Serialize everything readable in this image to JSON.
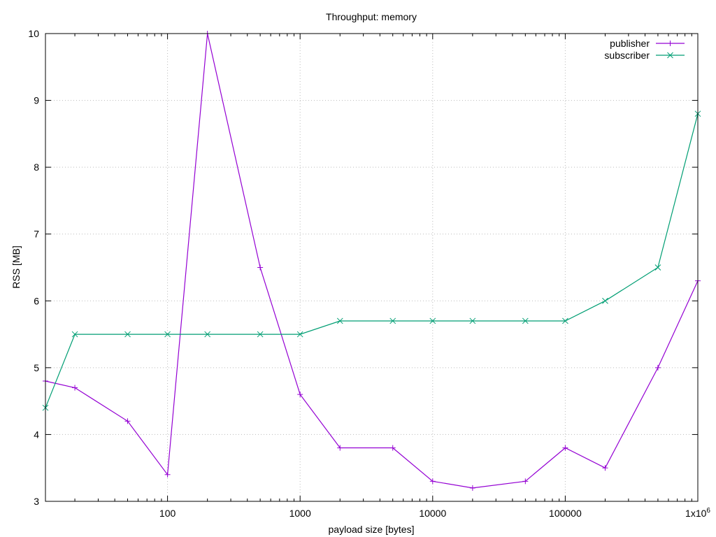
{
  "chart_data": {
    "type": "line",
    "title": "Throughput: memory",
    "xlabel": "payload size [bytes]",
    "ylabel": "RSS [MB]",
    "xscale": "log",
    "xlim": [
      12,
      1000000
    ],
    "ylim": [
      3,
      10
    ],
    "grid": true,
    "legend_position": "top-right",
    "x_ticks": [
      {
        "value": 100,
        "label": "100"
      },
      {
        "value": 1000,
        "label": "1000"
      },
      {
        "value": 10000,
        "label": "10000"
      },
      {
        "value": 100000,
        "label": "100000"
      },
      {
        "value": 1000000,
        "label": "1x10",
        "sup": "6"
      }
    ],
    "y_ticks": [
      3,
      4,
      5,
      6,
      7,
      8,
      9,
      10
    ],
    "x": [
      12,
      20,
      50,
      100,
      200,
      500,
      1000,
      2000,
      5000,
      10000,
      20000,
      50000,
      100000,
      200000,
      500000,
      1000000
    ],
    "series": [
      {
        "name": "publisher",
        "color": "#9400d3",
        "marker": "+",
        "values": [
          4.8,
          4.7,
          4.2,
          3.4,
          10.0,
          6.5,
          4.6,
          3.8,
          3.8,
          3.3,
          3.2,
          3.3,
          3.8,
          3.5,
          5.0,
          6.3
        ]
      },
      {
        "name": "subscriber",
        "color": "#009e73",
        "marker": "x",
        "values": [
          4.4,
          5.5,
          5.5,
          5.5,
          5.5,
          5.5,
          5.5,
          5.7,
          5.7,
          5.7,
          5.7,
          5.7,
          5.7,
          6.0,
          6.5,
          8.8
        ]
      }
    ]
  }
}
